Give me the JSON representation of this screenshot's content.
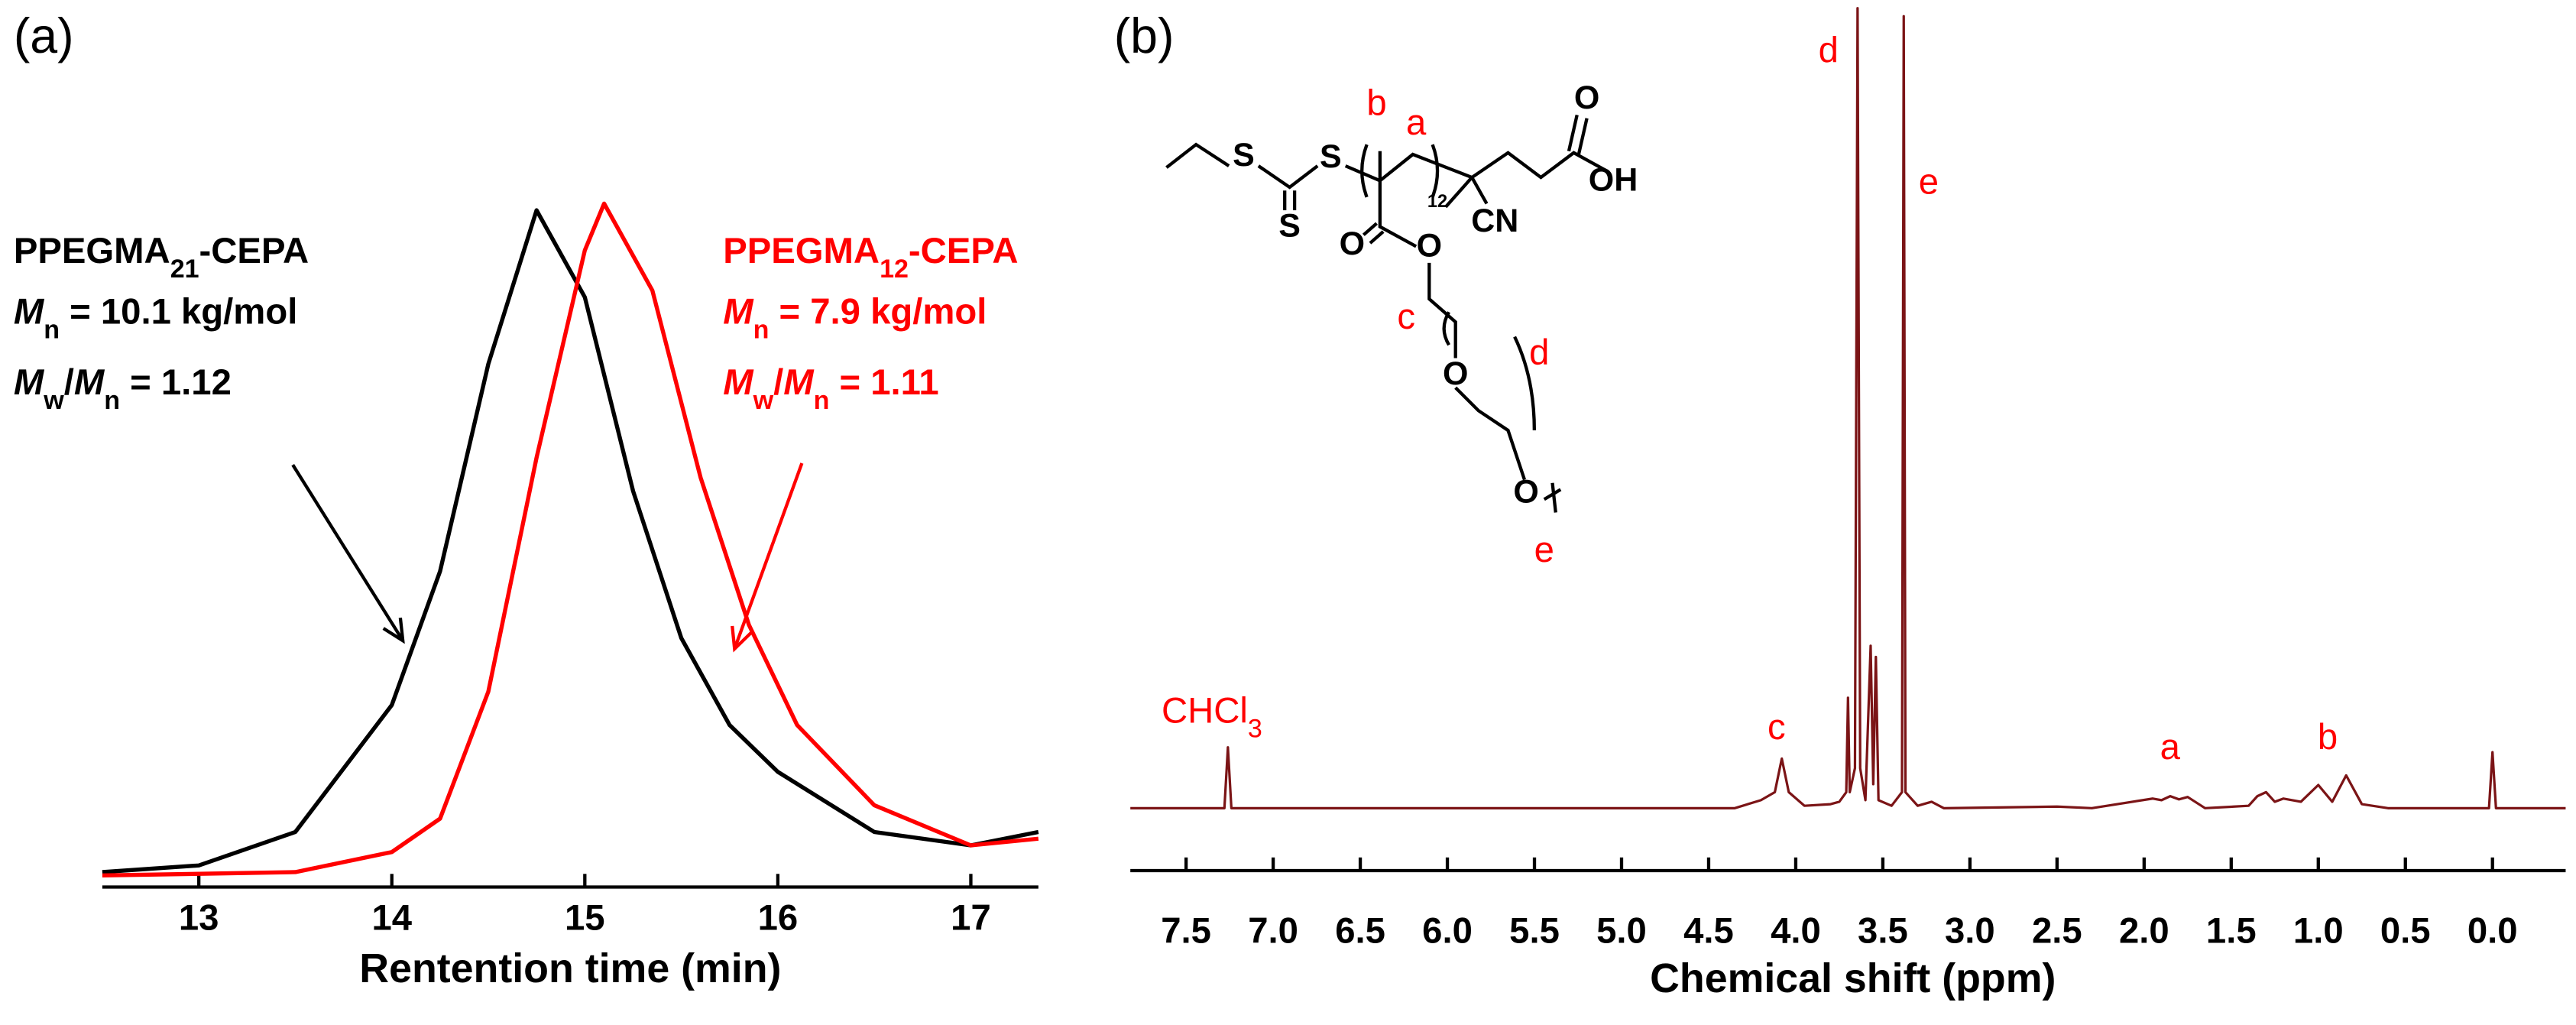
{
  "chart_data": [
    {
      "type": "line",
      "panel_label": "(a)",
      "xlabel": "Rentention time (min)",
      "xlim": [
        12.5,
        17.35
      ],
      "xticks": [
        13,
        14,
        15,
        16,
        17
      ],
      "ylim": [
        0,
        1
      ],
      "series": [
        {
          "name": [
            {
              "text": "PPEGMA"
            },
            {
              "sub": "21"
            },
            {
              "text": "-CEPA"
            }
          ],
          "color": "#000000",
          "stats": [
            [
              {
                "italic": "M"
              },
              {
                "sub": "n"
              },
              {
                "text": " = 10.1 kg/mol"
              }
            ],
            [
              {
                "italic": "M"
              },
              {
                "sub": "w"
              },
              {
                "text": "/"
              },
              {
                "italic": "M"
              },
              {
                "sub": "n"
              },
              {
                "text": " = 1.12"
              }
            ]
          ],
          "x": [
            12.5,
            13,
            13.5,
            14,
            14.25,
            14.5,
            14.75,
            15,
            15.25,
            15.5,
            15.75,
            16,
            16.5,
            17,
            17.35
          ],
          "values": [
            0.01,
            0.02,
            0.07,
            0.26,
            0.46,
            0.77,
            1.0,
            0.87,
            0.58,
            0.36,
            0.23,
            0.16,
            0.07,
            0.05,
            0.07
          ]
        },
        {
          "name": [
            {
              "text": "PPEGMA"
            },
            {
              "sub": "12"
            },
            {
              "text": "-CEPA"
            }
          ],
          "color": "#ff0000",
          "stats": [
            [
              {
                "italic": "M"
              },
              {
                "sub": "n"
              },
              {
                "text": " = 7.9 kg/mol"
              }
            ],
            [
              {
                "italic": "M"
              },
              {
                "sub": "w"
              },
              {
                "text": "/"
              },
              {
                "italic": "M"
              },
              {
                "sub": "n"
              },
              {
                "text": " = 1.11"
              }
            ]
          ],
          "x": [
            12.5,
            13.5,
            14,
            14.25,
            14.5,
            14.75,
            15,
            15.1,
            15.35,
            15.6,
            15.85,
            16.1,
            16.5,
            17,
            17.35
          ],
          "values": [
            0.005,
            0.01,
            0.04,
            0.09,
            0.28,
            0.63,
            0.94,
            1.01,
            0.88,
            0.6,
            0.38,
            0.23,
            0.11,
            0.05,
            0.06
          ]
        }
      ]
    },
    {
      "type": "line",
      "panel_label": "(b)",
      "xlabel": "Chemical shift (ppm)",
      "xlim": [
        7.82,
        -0.42
      ],
      "ylim": [
        0,
        100
      ],
      "xticks": [
        7.5,
        {
          "value": 7,
          "label": "7.0"
        },
        6.5,
        {
          "value": 6,
          "label": "6.0"
        },
        5.5,
        {
          "value": 5,
          "label": "5.0"
        },
        4.5,
        {
          "value": 4,
          "label": "4.0"
        },
        3.5,
        {
          "value": 3,
          "label": "3.0"
        },
        2.5,
        {
          "value": 2,
          "label": "2.0"
        },
        1.5,
        {
          "value": 1,
          "label": "1.0"
        },
        0.5,
        {
          "value": 0,
          "label": "0.0"
        }
      ],
      "series": [
        {
          "color": "#7b1416",
          "x": [
            7.82,
            7.28,
            7.26,
            7.24,
            4.35,
            4.2,
            4.12,
            4.08,
            4.04,
            3.95,
            3.8,
            3.75,
            3.71,
            3.7,
            3.69,
            3.66,
            3.645,
            3.63,
            3.6,
            3.57,
            3.555,
            3.54,
            3.525,
            3.45,
            3.39,
            3.38,
            3.37,
            3.3,
            3.22,
            3.15,
            2.5,
            2.3,
            1.95,
            1.9,
            1.85,
            1.8,
            1.75,
            1.65,
            1.4,
            1.35,
            1.3,
            1.25,
            1.2,
            1.1,
            1.0,
            0.92,
            0.84,
            0.75,
            0.6,
            0.02,
            0,
            -0.02,
            -0.42
          ],
          "values": [
            0,
            0,
            7.6,
            0,
            0,
            1,
            2,
            6.2,
            2,
            0.3,
            0.5,
            0.8,
            2,
            13.8,
            2,
            5,
            100,
            5,
            1,
            20.3,
            3,
            18.9,
            1,
            0.3,
            2,
            99,
            2,
            0.3,
            0.8,
            0,
            0.2,
            0,
            1.2,
            1,
            1.5,
            1.1,
            1.4,
            0,
            0.3,
            1.5,
            2,
            0.8,
            1.2,
            0.8,
            2.9,
            0.8,
            4.1,
            0.5,
            0,
            0,
            7,
            0,
            0
          ]
        }
      ],
      "peak_labels": [
        [
          {
            "text": "CHCl"
          },
          {
            "sub": "3"
          }
        ],
        [
          {
            "text": "c"
          }
        ],
        [
          {
            "text": "d"
          }
        ],
        [
          {
            "text": "e"
          }
        ],
        [
          {
            "text": "a"
          }
        ],
        [
          {
            "text": "b"
          }
        ]
      ],
      "structure_labels": [
        "S",
        "S",
        "S",
        "b",
        "a",
        "12",
        "CN",
        "OH",
        "O",
        "O",
        "O",
        "c",
        "d",
        "O",
        "O",
        "e"
      ]
    }
  ]
}
